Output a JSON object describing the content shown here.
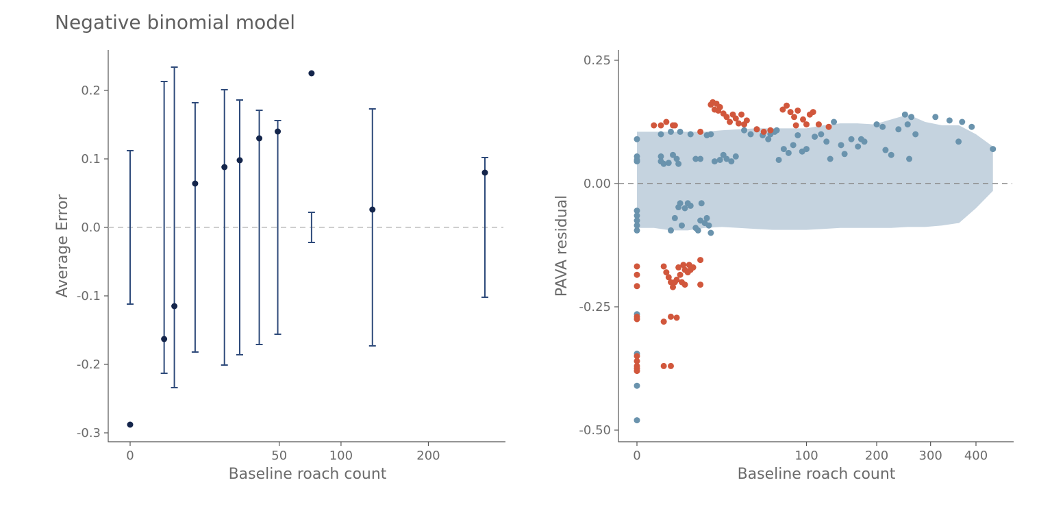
{
  "figure": {
    "title": "Negative binomial model"
  },
  "chart_data": [
    {
      "type": "scatter",
      "subtype": "errorbar",
      "xlabel": "Baseline roach count",
      "ylabel": "Average Error",
      "x_scale": "sqrt",
      "xlim": [
        0,
        320
      ],
      "ylim": [
        -0.315,
        0.26
      ],
      "x_ticks": [
        0,
        50,
        100,
        200
      ],
      "x_tick_labels": [
        "0",
        "50",
        "100",
        "200"
      ],
      "y_ticks": [
        -0.3,
        -0.2,
        -0.1,
        0.0,
        0.1,
        0.2
      ],
      "y_tick_labels": [
        "-0.3",
        "-0.2",
        "-0.1",
        "0.0",
        "0.1",
        "0.2"
      ],
      "reference_line": 0,
      "grid": false,
      "colors": {
        "points": "#14254b",
        "bars": "#2e4a7a",
        "reference": "#bdbdbd"
      },
      "points": [
        {
          "x": 0.0,
          "y": -0.288,
          "lo": -0.112,
          "hi": 0.112
        },
        {
          "x": 2.6,
          "y": -0.163,
          "lo": -0.213,
          "hi": 0.213
        },
        {
          "x": 4.4,
          "y": -0.115,
          "lo": -0.234,
          "hi": 0.234
        },
        {
          "x": 9.5,
          "y": 0.064,
          "lo": -0.182,
          "hi": 0.182
        },
        {
          "x": 20.0,
          "y": 0.088,
          "lo": -0.201,
          "hi": 0.201
        },
        {
          "x": 27.0,
          "y": 0.098,
          "lo": -0.186,
          "hi": 0.186
        },
        {
          "x": 37.5,
          "y": 0.13,
          "lo": -0.171,
          "hi": 0.171
        },
        {
          "x": 49.0,
          "y": 0.14,
          "lo": -0.156,
          "hi": 0.156
        },
        {
          "x": 74.0,
          "y": 0.225,
          "lo": null,
          "hi": null
        },
        {
          "x": 74.0,
          "y": null,
          "lo": -0.022,
          "hi": 0.022
        },
        {
          "x": 132.0,
          "y": 0.026,
          "lo": -0.173,
          "hi": 0.173
        },
        {
          "x": 283.0,
          "y": 0.08,
          "lo": -0.102,
          "hi": 0.102
        }
      ]
    },
    {
      "type": "scatter",
      "xlabel": "Baseline roach count",
      "ylabel": "PAVA residual",
      "x_scale": "sqrt",
      "xlim": [
        0,
        470
      ],
      "ylim": [
        -0.53,
        0.27
      ],
      "x_ticks": [
        0,
        100,
        200,
        300,
        400
      ],
      "x_tick_labels": [
        "0",
        "100",
        "200",
        "300",
        "400"
      ],
      "y_ticks": [
        -0.5,
        -0.25,
        0.0,
        0.25
      ],
      "y_tick_labels": [
        "-0.50",
        "-0.25",
        "0.00",
        "0.25"
      ],
      "reference_line": 0,
      "grid": false,
      "colors": {
        "inside": "#6a93ad",
        "outside": "#d1573c",
        "band": "#c5d3df",
        "reference": "#8a8a8a"
      },
      "band": {
        "x": [
          0,
          1,
          4,
          9,
          16,
          25,
          36,
          49,
          64,
          81,
          100,
          121,
          144,
          169,
          196,
          225,
          256,
          289,
          324,
          361,
          400,
          441
        ],
        "upper": [
          0.105,
          0.105,
          0.105,
          0.105,
          0.105,
          0.108,
          0.11,
          0.112,
          0.112,
          0.112,
          0.112,
          0.118,
          0.122,
          0.122,
          0.12,
          0.13,
          0.14,
          0.125,
          0.118,
          0.118,
          0.1,
          0.075
        ],
        "lower": [
          -0.09,
          -0.09,
          -0.095,
          -0.095,
          -0.09,
          -0.088,
          -0.09,
          -0.092,
          -0.094,
          -0.094,
          -0.094,
          -0.092,
          -0.09,
          -0.09,
          -0.09,
          -0.09,
          -0.088,
          -0.088,
          -0.085,
          -0.08,
          -0.05,
          -0.015
        ]
      },
      "points_inside": [
        [
          0,
          0.09
        ],
        [
          0,
          0.055
        ],
        [
          0,
          0.048
        ],
        [
          0,
          0.045
        ],
        [
          0,
          -0.055
        ],
        [
          0,
          -0.065
        ],
        [
          0,
          -0.075
        ],
        [
          0,
          -0.085
        ],
        [
          0,
          -0.095
        ],
        [
          0,
          -0.265
        ],
        [
          0,
          -0.345
        ],
        [
          0,
          -0.41
        ],
        [
          0,
          -0.48
        ],
        [
          2,
          0.1
        ],
        [
          2,
          0.055
        ],
        [
          2,
          0.045
        ],
        [
          2.5,
          0.04
        ],
        [
          3.5,
          0.042
        ],
        [
          4.5,
          0.058
        ],
        [
          5.5,
          0.05
        ],
        [
          6,
          0.04
        ],
        [
          4,
          0.105
        ],
        [
          6.5,
          0.105
        ],
        [
          4,
          -0.095
        ],
        [
          5,
          -0.07
        ],
        [
          6,
          -0.048
        ],
        [
          6.5,
          -0.04
        ],
        [
          8,
          -0.05
        ],
        [
          7,
          -0.085
        ],
        [
          9,
          -0.04
        ],
        [
          10,
          -0.045
        ],
        [
          12,
          -0.09
        ],
        [
          13,
          -0.095
        ],
        [
          14,
          -0.075
        ],
        [
          14.5,
          -0.04
        ],
        [
          16,
          -0.08
        ],
        [
          17,
          -0.07
        ],
        [
          18,
          -0.085
        ],
        [
          19,
          -0.1
        ],
        [
          10,
          0.1
        ],
        [
          12,
          0.05
        ],
        [
          14,
          0.05
        ],
        [
          17,
          0.098
        ],
        [
          19,
          0.1
        ],
        [
          21,
          0.045
        ],
        [
          24,
          0.048
        ],
        [
          26,
          0.058
        ],
        [
          28,
          0.05
        ],
        [
          31,
          0.045
        ],
        [
          34,
          0.055
        ],
        [
          40,
          0.108
        ],
        [
          45,
          0.1
        ],
        [
          50,
          0.11
        ],
        [
          55,
          0.098
        ],
        [
          60,
          0.09
        ],
        [
          62,
          0.1
        ],
        [
          66,
          0.105
        ],
        [
          68,
          0.108
        ],
        [
          70,
          0.048
        ],
        [
          75,
          0.07
        ],
        [
          80,
          0.062
        ],
        [
          85,
          0.078
        ],
        [
          90,
          0.098
        ],
        [
          95,
          0.065
        ],
        [
          100,
          0.07
        ],
        [
          110,
          0.095
        ],
        [
          118,
          0.1
        ],
        [
          125,
          0.085
        ],
        [
          130,
          0.05
        ],
        [
          135,
          0.125
        ],
        [
          145,
          0.078
        ],
        [
          150,
          0.06
        ],
        [
          160,
          0.09
        ],
        [
          170,
          0.075
        ],
        [
          175,
          0.09
        ],
        [
          180,
          0.085
        ],
        [
          200,
          0.12
        ],
        [
          210,
          0.115
        ],
        [
          215,
          0.068
        ],
        [
          225,
          0.058
        ],
        [
          238,
          0.11
        ],
        [
          250,
          0.14
        ],
        [
          255,
          0.12
        ],
        [
          258,
          0.05
        ],
        [
          262,
          0.135
        ],
        [
          270,
          0.1
        ],
        [
          310,
          0.135
        ],
        [
          340,
          0.128
        ],
        [
          360,
          0.085
        ],
        [
          368,
          0.125
        ],
        [
          390,
          0.115
        ],
        [
          441,
          0.07
        ]
      ],
      "points_outside": [
        [
          0,
          -0.168
        ],
        [
          0,
          -0.185
        ],
        [
          0,
          -0.208
        ],
        [
          0,
          -0.27
        ],
        [
          0,
          -0.275
        ],
        [
          0,
          -0.35
        ],
        [
          0,
          -0.36
        ],
        [
          0,
          -0.37
        ],
        [
          0,
          -0.375
        ],
        [
          0,
          -0.38
        ],
        [
          1,
          0.118
        ],
        [
          2,
          0.118
        ],
        [
          3,
          0.125
        ],
        [
          4.5,
          0.118
        ],
        [
          5,
          0.118
        ],
        [
          2.5,
          -0.168
        ],
        [
          3,
          -0.18
        ],
        [
          3.5,
          -0.19
        ],
        [
          4,
          -0.2
        ],
        [
          4.5,
          -0.21
        ],
        [
          5,
          -0.2
        ],
        [
          5.5,
          -0.195
        ],
        [
          6,
          -0.17
        ],
        [
          6.5,
          -0.185
        ],
        [
          7,
          -0.2
        ],
        [
          7.5,
          -0.165
        ],
        [
          8,
          -0.175
        ],
        [
          9,
          -0.18
        ],
        [
          8,
          -0.205
        ],
        [
          9.5,
          -0.165
        ],
        [
          10,
          -0.175
        ],
        [
          11,
          -0.17
        ],
        [
          2.5,
          -0.28
        ],
        [
          4,
          -0.27
        ],
        [
          5.5,
          -0.272
        ],
        [
          2.5,
          -0.37
        ],
        [
          4,
          -0.37
        ],
        [
          14,
          -0.205
        ],
        [
          14,
          -0.155
        ],
        [
          14,
          0.105
        ],
        [
          19,
          0.16
        ],
        [
          20,
          0.165
        ],
        [
          21,
          0.15
        ],
        [
          22,
          0.162
        ],
        [
          23,
          0.148
        ],
        [
          24,
          0.155
        ],
        [
          26,
          0.142
        ],
        [
          28,
          0.135
        ],
        [
          30,
          0.125
        ],
        [
          32,
          0.14
        ],
        [
          34,
          0.132
        ],
        [
          36,
          0.122
        ],
        [
          38,
          0.14
        ],
        [
          40,
          0.12
        ],
        [
          42,
          0.128
        ],
        [
          50,
          0.11
        ],
        [
          56,
          0.105
        ],
        [
          62,
          0.108
        ],
        [
          74,
          0.15
        ],
        [
          78,
          0.158
        ],
        [
          82,
          0.145
        ],
        [
          86,
          0.135
        ],
        [
          88,
          0.118
        ],
        [
          90,
          0.148
        ],
        [
          96,
          0.13
        ],
        [
          100,
          0.12
        ],
        [
          104,
          0.14
        ],
        [
          108,
          0.145
        ],
        [
          115,
          0.12
        ],
        [
          128,
          0.115
        ]
      ]
    }
  ]
}
